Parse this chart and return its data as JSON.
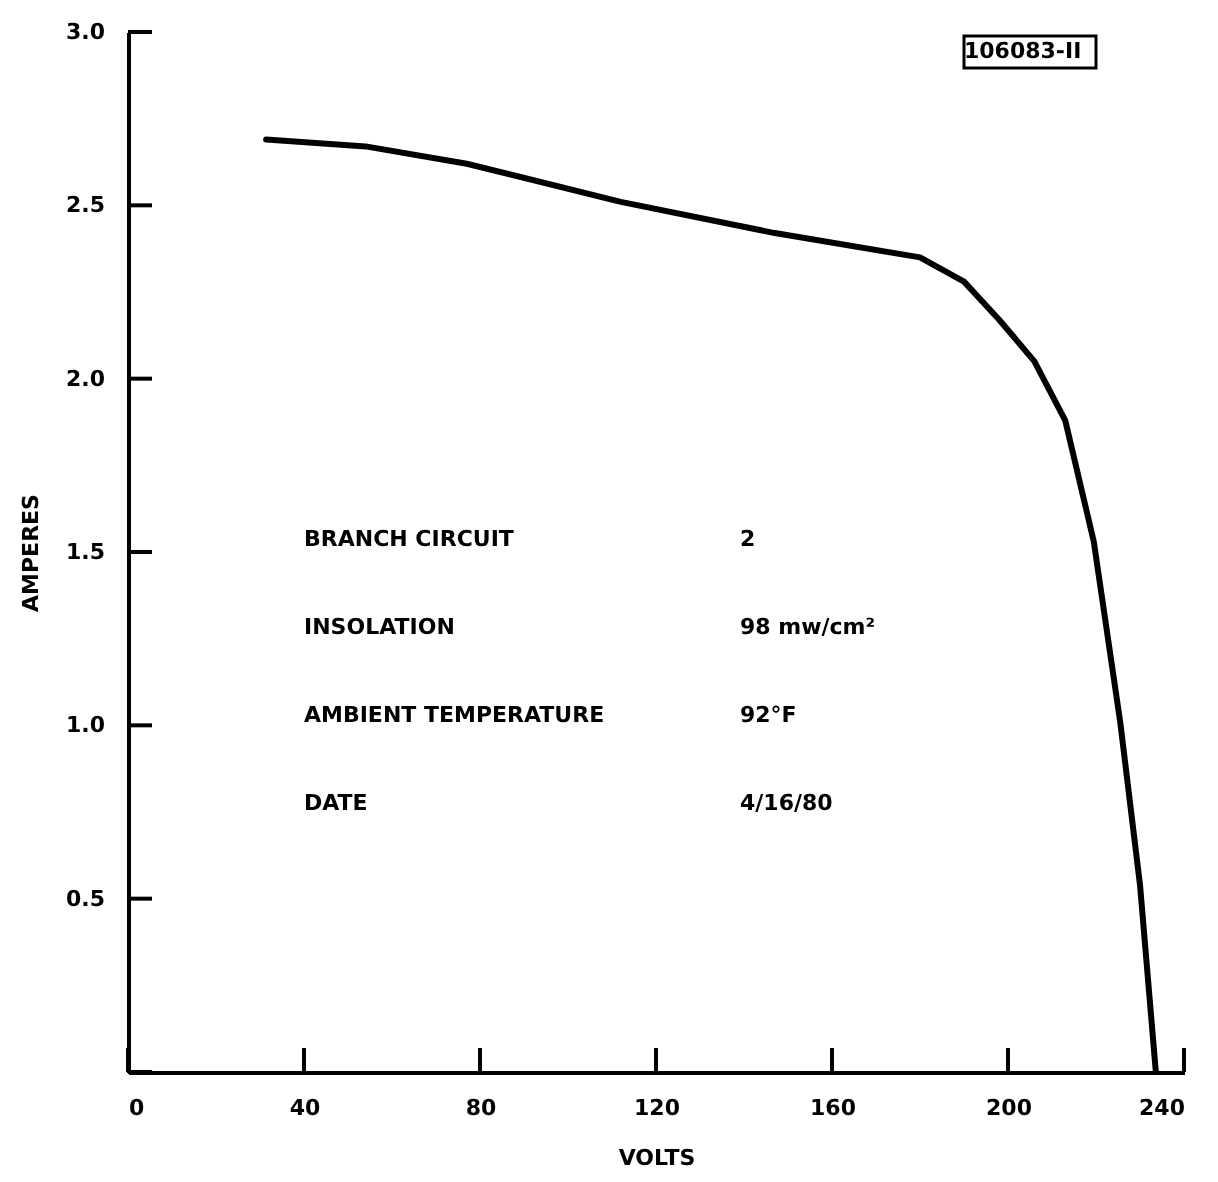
{
  "chart_data": {
    "type": "line",
    "xlabel": "VOLTS",
    "ylabel": "AMPERES",
    "x": [
      31.4,
      54,
      77,
      112,
      147,
      180,
      190,
      198,
      206,
      213,
      219.5,
      225.5,
      230,
      233.6
    ],
    "series": [
      {
        "color": "#000000",
        "values": [
          2.69,
          2.67,
          2.62,
          2.51,
          2.42,
          2.35,
          2.28,
          2.17,
          2.05,
          1.88,
          1.53,
          1.01,
          0.54,
          0
        ]
      }
    ],
    "xlim": [
      0,
      240
    ],
    "xticks": [
      0,
      40,
      80,
      120,
      160,
      200,
      240
    ],
    "ylim": [
      0,
      3
    ],
    "yticks": [
      {
        "value": 0,
        "label": null
      },
      0.5,
      {
        "value": 1,
        "label": "1.0"
      },
      1.5,
      {
        "value": 2,
        "label": "2.0"
      },
      2.5,
      {
        "value": 3,
        "label": "3.0"
      }
    ],
    "line_style": "solid",
    "annotations": [
      "BRANCH CIRCUIT",
      "2",
      "INSOLATION",
      "98 mw/cm²",
      "AMBIENT TEMPERATURE",
      "92°F",
      "DATE",
      "4/16/80",
      "106083-II"
    ]
  }
}
